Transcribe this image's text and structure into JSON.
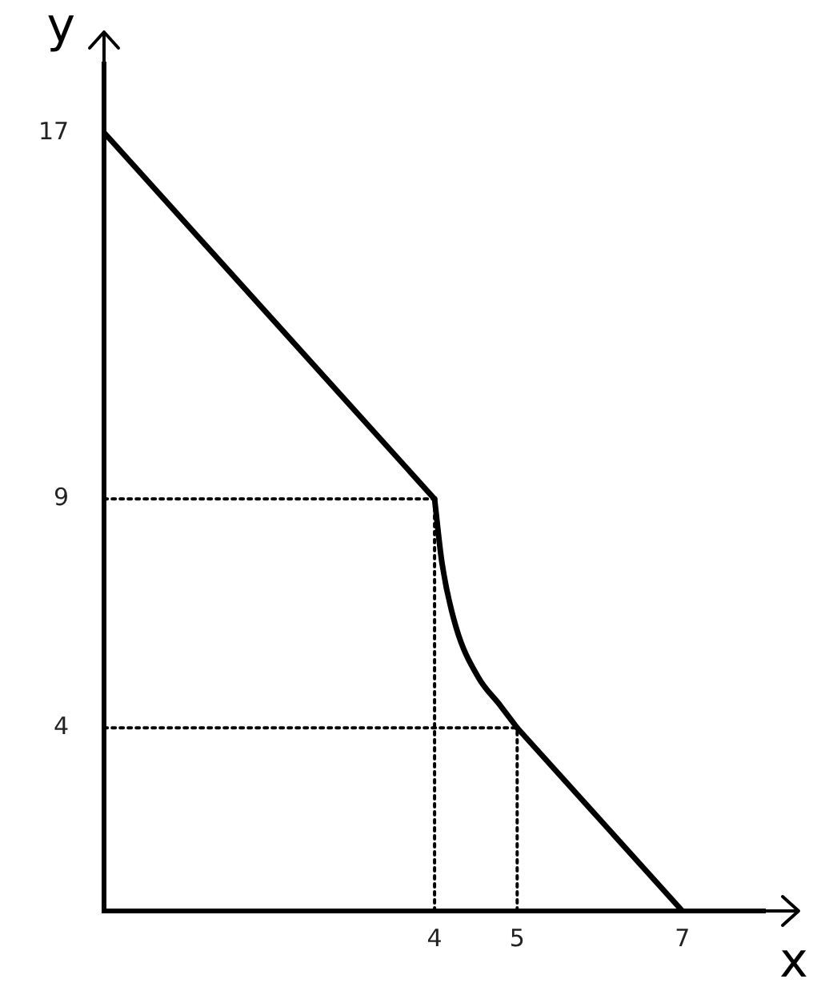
{
  "chart_data": {
    "type": "line",
    "xlabel": "x",
    "ylabel": "y",
    "xlim": [
      0,
      8
    ],
    "ylim": [
      0,
      18.5
    ],
    "xticks": [
      4,
      5,
      7
    ],
    "yticks": [
      4,
      9,
      17
    ],
    "grid": false,
    "legend": false,
    "marker": "none",
    "series": [
      {
        "color": "#000000",
        "x": [
          0,
          4
        ],
        "values": [
          17,
          9
        ]
      },
      {
        "color": "#000000",
        "x": [
          4,
          4.09,
          4.26,
          4.53,
          4.79,
          5
        ],
        "values": [
          9,
          7.6,
          6.2,
          5.1,
          4.5,
          4
        ]
      },
      {
        "color": "#000000",
        "x": [
          5,
          7
        ],
        "values": [
          4,
          0
        ]
      },
      {
        "color": "#000000",
        "line_style": "dotted",
        "x": [
          0,
          4
        ],
        "values": [
          9,
          9
        ]
      },
      {
        "color": "#000000",
        "line_style": "dotted",
        "x": [
          4,
          4
        ],
        "values": [
          0,
          9
        ]
      },
      {
        "color": "#000000",
        "line_style": "dotted",
        "x": [
          0,
          5
        ],
        "values": [
          4,
          4
        ]
      },
      {
        "color": "#000000",
        "line_style": "dotted",
        "x": [
          5,
          5
        ],
        "values": [
          0,
          4
        ]
      }
    ]
  }
}
